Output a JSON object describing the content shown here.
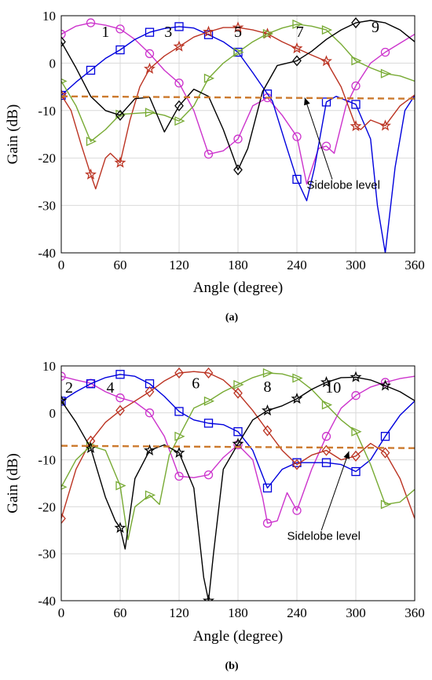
{
  "chart_data": [
    {
      "type": "line",
      "caption": "(a)",
      "xlabel": "Angle (degree)",
      "ylabel": "Gain (dB)",
      "xlim": [
        0,
        360
      ],
      "ylim": [
        -40,
        10
      ],
      "xticks": [
        0,
        60,
        120,
        180,
        240,
        300,
        360
      ],
      "yticks": [
        10,
        0,
        -10,
        -20,
        -30,
        -40
      ],
      "grid": true,
      "series": [
        {
          "name": "1",
          "color": "#cc33cc",
          "marker": "circle",
          "x": [
            0,
            15,
            30,
            45,
            60,
            75,
            90,
            105,
            120,
            135,
            150,
            165,
            180,
            195,
            210,
            225,
            240,
            250,
            262,
            270,
            278,
            290,
            300,
            315,
            330,
            345,
            360
          ],
          "y": [
            6.1,
            7.8,
            8.5,
            8.0,
            7.2,
            5.0,
            2.0,
            -1.5,
            -4.2,
            -10,
            -19.2,
            -18.5,
            -16,
            -9,
            -7.3,
            -11,
            -15.5,
            -25.5,
            -18,
            -17.5,
            -19,
            -9,
            -4.8,
            0,
            2.3,
            4.2,
            6.1
          ],
          "markers_x": [
            0,
            30,
            60,
            90,
            120,
            150,
            180,
            210,
            240,
            270,
            300,
            330
          ]
        },
        {
          "name": "3",
          "color": "#0000dd",
          "marker": "square",
          "x": [
            0,
            15,
            30,
            45,
            60,
            75,
            90,
            105,
            120,
            135,
            150,
            165,
            180,
            195,
            205,
            215,
            230,
            240,
            250,
            258,
            270,
            280,
            300,
            315,
            322,
            330,
            340,
            350,
            360
          ],
          "y": [
            -6.8,
            -4,
            -1.5,
            1,
            2.8,
            5,
            6.5,
            7.3,
            7.7,
            7.4,
            6,
            4.5,
            2.3,
            -2,
            -5,
            -8,
            -18,
            -24.5,
            -29,
            -22,
            -8.2,
            -7,
            -8.7,
            -16,
            -30,
            -40,
            -22,
            -10,
            -6.8
          ],
          "markers_x": [
            0,
            30,
            60,
            90,
            120,
            150,
            180,
            210,
            240,
            270,
            300
          ]
        },
        {
          "name": "5",
          "color": "#bb3322",
          "marker": "star",
          "x": [
            0,
            10,
            20,
            30,
            35,
            45,
            50,
            60,
            70,
            80,
            90,
            105,
            120,
            135,
            150,
            165,
            180,
            195,
            210,
            225,
            240,
            255,
            270,
            285,
            300,
            305,
            315,
            330,
            345,
            360
          ],
          "y": [
            -6.7,
            -10,
            -17,
            -23.5,
            -26.5,
            -20,
            -19,
            -21,
            -12,
            -5,
            -1.2,
            1.5,
            3.5,
            5.5,
            6.6,
            7.5,
            7.5,
            7,
            6.2,
            4.5,
            3.1,
            1.7,
            0.4,
            -5,
            -13.3,
            -14,
            -12,
            -13.2,
            -9,
            -6.7
          ],
          "markers_x": [
            0,
            30,
            60,
            90,
            120,
            150,
            180,
            210,
            240,
            270,
            300,
            330
          ]
        },
        {
          "name": "7",
          "color": "#77aa33",
          "marker": "triangle-right",
          "x": [
            0,
            15,
            30,
            45,
            60,
            75,
            90,
            105,
            120,
            135,
            150,
            165,
            180,
            195,
            210,
            225,
            240,
            255,
            270,
            285,
            300,
            315,
            330,
            345,
            360
          ],
          "y": [
            -3.8,
            -9,
            -16.5,
            -14,
            -10.8,
            -10.6,
            -10.4,
            -11,
            -12.2,
            -9,
            -3.2,
            0,
            2.3,
            4.5,
            6.2,
            7.4,
            8.2,
            7.8,
            7.0,
            4,
            0.5,
            -1,
            -2.2,
            -2.7,
            -3.8
          ],
          "markers_x": [
            0,
            30,
            60,
            90,
            120,
            150,
            180,
            210,
            240,
            270,
            300,
            330
          ]
        },
        {
          "name": "9",
          "color": "#000000",
          "marker": "diamond",
          "x": [
            0,
            15,
            30,
            45,
            60,
            75,
            90,
            105,
            120,
            135,
            150,
            165,
            180,
            190,
            205,
            220,
            240,
            255,
            270,
            285,
            300,
            315,
            330,
            345,
            360
          ],
          "y": [
            4.5,
            -1,
            -7,
            -10,
            -11,
            -7.5,
            -7.2,
            -14.5,
            -9,
            -5.5,
            -7,
            -14,
            -22.5,
            -18,
            -6,
            -0.5,
            0.5,
            2.5,
            5,
            7,
            8.5,
            9,
            8.5,
            7,
            4.5
          ],
          "markers_x": [
            0,
            60,
            120,
            180,
            240,
            300
          ]
        },
        {
          "name": "Sidelobe level",
          "color": "#cc7a2e",
          "dashed": true,
          "x": [
            0,
            360
          ],
          "y": [
            -7,
            -7.5
          ]
        }
      ],
      "labels": [
        {
          "text": "1",
          "x": 45,
          "y": 5.5
        },
        {
          "text": "3",
          "x": 109,
          "y": 5.5
        },
        {
          "text": "5",
          "x": 180,
          "y": 5.5
        },
        {
          "text": "7",
          "x": 243,
          "y": 5.5
        },
        {
          "text": "9",
          "x": 320,
          "y": 6.5
        }
      ],
      "annotation": {
        "text": "Sidelobe level",
        "text_x": 250,
        "text_y": -26.5,
        "arrow_from": [
          276,
          -24.5
        ],
        "arrow_to": [
          248,
          -7.3
        ]
      }
    },
    {
      "type": "line",
      "caption": "(b)",
      "xlabel": "Angle (degree)",
      "ylabel": "Gain (dB)",
      "xlim": [
        0,
        360
      ],
      "ylim": [
        -40,
        10
      ],
      "xticks": [
        0,
        60,
        120,
        180,
        240,
        300,
        360
      ],
      "yticks": [
        10,
        0,
        -10,
        -20,
        -30,
        -40
      ],
      "grid": true,
      "series": [
        {
          "name": "2",
          "color": "#cc33cc",
          "marker": "circle",
          "x": [
            0,
            15,
            30,
            45,
            60,
            75,
            90,
            105,
            120,
            135,
            150,
            165,
            180,
            195,
            205,
            210,
            220,
            230,
            240,
            255,
            270,
            285,
            300,
            315,
            330,
            345,
            360
          ],
          "y": [
            7.8,
            7,
            6.3,
            4.5,
            3.2,
            2.3,
            0,
            -5,
            -13.5,
            -13.8,
            -13.2,
            -9.5,
            -6.8,
            -10,
            -18,
            -23.5,
            -23,
            -17,
            -20.8,
            -12,
            -5,
            1,
            3.7,
            5.5,
            6.5,
            7.3,
            7.8
          ],
          "markers_x": [
            0,
            30,
            60,
            90,
            120,
            150,
            180,
            210,
            240,
            270,
            300,
            330
          ]
        },
        {
          "name": "4",
          "color": "#0000dd",
          "marker": "square",
          "x": [
            0,
            15,
            30,
            45,
            60,
            75,
            90,
            105,
            120,
            135,
            150,
            165,
            180,
            195,
            210,
            225,
            240,
            255,
            270,
            285,
            300,
            315,
            330,
            345,
            360
          ],
          "y": [
            2.5,
            4.5,
            6.2,
            7.5,
            8.2,
            7.8,
            6.2,
            3.5,
            0.3,
            -1.5,
            -2.2,
            -2.5,
            -4,
            -8,
            -16,
            -12,
            -10.6,
            -10.6,
            -10.6,
            -11,
            -12.5,
            -10,
            -5,
            -0.5,
            2.5
          ],
          "markers_x": [
            0,
            30,
            60,
            90,
            120,
            150,
            180,
            210,
            240,
            270,
            300,
            330
          ]
        },
        {
          "name": "6",
          "color": "#bb3322",
          "marker": "diamond",
          "x": [
            0,
            15,
            30,
            45,
            60,
            75,
            90,
            105,
            120,
            135,
            150,
            165,
            180,
            195,
            210,
            225,
            240,
            255,
            270,
            285,
            300,
            315,
            330,
            345,
            360
          ],
          "y": [
            -22.5,
            -12,
            -6,
            -2,
            0.5,
            2.5,
            4.5,
            6.8,
            8.5,
            8.8,
            8.5,
            7,
            4.2,
            0.5,
            -3.8,
            -8,
            -11,
            -9,
            -8,
            -10,
            -9.2,
            -6.5,
            -8.5,
            -14,
            -22.5
          ],
          "markers_x": [
            0,
            30,
            60,
            90,
            120,
            150,
            180,
            210,
            240,
            270,
            300,
            330
          ]
        },
        {
          "name": "8",
          "color": "#77aa33",
          "marker": "triangle-right",
          "x": [
            0,
            15,
            30,
            45,
            60,
            68,
            75,
            90,
            100,
            110,
            120,
            135,
            150,
            165,
            180,
            195,
            210,
            225,
            240,
            255,
            270,
            285,
            300,
            315,
            330,
            345,
            360
          ],
          "y": [
            -15.8,
            -10,
            -7,
            -8,
            -15.5,
            -27,
            -20,
            -17.5,
            -19.5,
            -9,
            -5,
            1,
            2.5,
            4.5,
            6,
            7.5,
            8.5,
            8.3,
            7.4,
            5,
            1.7,
            -1.5,
            -4,
            -11,
            -19.5,
            -19,
            -16.3
          ],
          "markers_x": [
            0,
            30,
            60,
            90,
            120,
            150,
            180,
            210,
            240,
            270,
            300,
            330
          ]
        },
        {
          "name": "10",
          "color": "#000000",
          "marker": "star",
          "x": [
            0,
            15,
            30,
            45,
            55,
            60,
            65,
            75,
            90,
            105,
            120,
            135,
            145,
            150,
            155,
            165,
            180,
            195,
            210,
            225,
            240,
            255,
            270,
            285,
            300,
            315,
            330,
            345,
            360
          ],
          "y": [
            2.6,
            -2,
            -7.5,
            -18,
            -23,
            -24.5,
            -29,
            -14,
            -8,
            -6.8,
            -8.5,
            -16,
            -35,
            -40,
            -30,
            -12,
            -6.6,
            -1.5,
            0.5,
            1.5,
            3,
            5,
            6.5,
            7.5,
            7.6,
            7,
            5.8,
            4.5,
            2.6
          ],
          "markers_x": [
            0,
            30,
            60,
            90,
            120,
            150,
            180,
            210,
            240,
            270,
            300,
            330
          ]
        },
        {
          "name": "Sidelobe level",
          "color": "#cc7a2e",
          "dashed": true,
          "x": [
            0,
            360
          ],
          "y": [
            -7,
            -7.5
          ]
        }
      ],
      "labels": [
        {
          "text": "2",
          "x": 8,
          "y": 4.3
        },
        {
          "text": "4",
          "x": 50,
          "y": 4.3
        },
        {
          "text": "6",
          "x": 137,
          "y": 5.2
        },
        {
          "text": "8",
          "x": 210,
          "y": 4.5
        },
        {
          "text": "10",
          "x": 277,
          "y": 4.3
        }
      ],
      "annotation": {
        "text": "Sidelobe level",
        "text_x": 230,
        "text_y": -27,
        "arrow_from": [
          265,
          -25
        ],
        "arrow_to": [
          293,
          -8.2
        ]
      }
    }
  ]
}
